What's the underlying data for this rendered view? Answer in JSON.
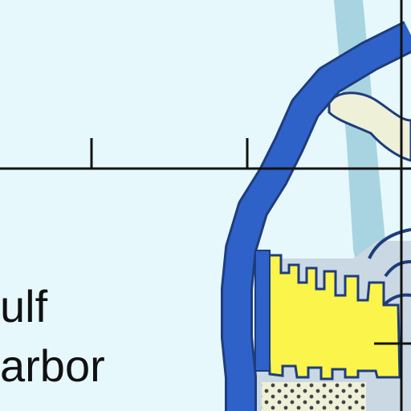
{
  "map": {
    "labels": {
      "place_line_1": "ulf",
      "place_line_2": "arbor"
    },
    "colors": {
      "water": "#e7f8fc",
      "channel_light": "#a8d3e0",
      "breakwater": "#2f62c9",
      "breakwater_outline": "#1f3d7a",
      "land_gray": "#c9d8e3",
      "land_yellow": "#fbf44a",
      "sand_pale": "#eef0d8",
      "marker_black": "#111111"
    },
    "icons": [
      "breakwater-line",
      "sand-dot-pattern",
      "scale-bar"
    ]
  }
}
